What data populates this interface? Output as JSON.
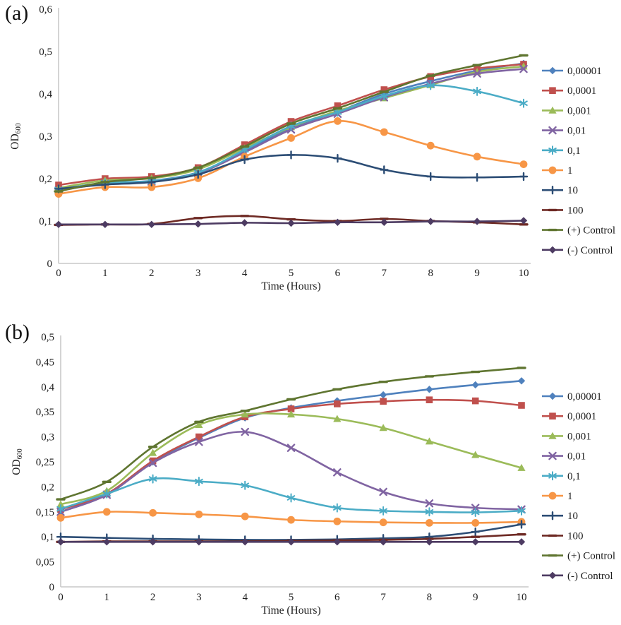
{
  "figure": {
    "panels": [
      {
        "label": "(a)"
      },
      {
        "label": "(b)"
      }
    ]
  },
  "chart_data": [
    {
      "panel": "(a)",
      "type": "line",
      "title": "",
      "xlabel": "Time (Hours)",
      "ylabel_main": "OD",
      "ylabel_sub": "600",
      "x": [
        0,
        1,
        2,
        3,
        4,
        5,
        6,
        7,
        8,
        9,
        10
      ],
      "xtick_labels": [
        "0",
        "1",
        "2",
        "3",
        "4",
        "5",
        "6",
        "7",
        "8",
        "9",
        "10"
      ],
      "xlim": [
        0,
        10
      ],
      "ylim": [
        0,
        0.6
      ],
      "yticks": [
        {
          "v": 0,
          "label": "0"
        },
        {
          "v": 0.1,
          "label": "0,1"
        },
        {
          "v": 0.2,
          "label": "0,2"
        },
        {
          "v": 0.3,
          "label": "0,3"
        },
        {
          "v": 0.4,
          "label": "0,4"
        },
        {
          "v": 0.5,
          "label": "0,5"
        },
        {
          "v": 0.6,
          "label": "0,6"
        }
      ],
      "grid": false,
      "legend_position": "right",
      "series": [
        {
          "name": "0,00001",
          "color": "#4F81BD",
          "marker": "diamond",
          "values": [
            0.175,
            0.19,
            0.195,
            0.215,
            0.265,
            0.32,
            0.358,
            0.4,
            0.43,
            0.455,
            0.472
          ]
        },
        {
          "name": "0,0001",
          "color": "#C0504D",
          "marker": "square",
          "values": [
            0.185,
            0.2,
            0.205,
            0.226,
            0.28,
            0.335,
            0.372,
            0.41,
            0.441,
            0.46,
            0.47
          ]
        },
        {
          "name": "0,001",
          "color": "#9BBB59",
          "marker": "triangle",
          "values": [
            0.178,
            0.196,
            0.201,
            0.222,
            0.272,
            0.322,
            0.36,
            0.39,
            0.421,
            0.452,
            0.465
          ]
        },
        {
          "name": "0,01",
          "color": "#8064A2",
          "marker": "x",
          "values": [
            0.172,
            0.188,
            0.193,
            0.213,
            0.262,
            0.316,
            0.353,
            0.392,
            0.424,
            0.448,
            0.459
          ]
        },
        {
          "name": "0,1",
          "color": "#4BACC6",
          "marker": "asterisk",
          "values": [
            0.174,
            0.19,
            0.194,
            0.214,
            0.268,
            0.324,
            0.357,
            0.395,
            0.42,
            0.406,
            0.378
          ]
        },
        {
          "name": "1",
          "color": "#F79646",
          "marker": "circle",
          "values": [
            0.164,
            0.18,
            0.18,
            0.201,
            0.252,
            0.296,
            0.336,
            0.31,
            0.278,
            0.252,
            0.234
          ]
        },
        {
          "name": "10",
          "color": "#2C4D75",
          "marker": "plus",
          "values": [
            0.176,
            0.186,
            0.192,
            0.21,
            0.245,
            0.256,
            0.248,
            0.221,
            0.205,
            0.203,
            0.205
          ]
        },
        {
          "name": "100",
          "color": "#6E2A24",
          "marker": "dash",
          "values": [
            0.091,
            0.092,
            0.093,
            0.107,
            0.112,
            0.104,
            0.1,
            0.105,
            0.1,
            0.097,
            0.092
          ]
        },
        {
          "name": "(+) Control",
          "color": "#5F7530",
          "marker": "dash",
          "values": [
            0.17,
            0.192,
            0.202,
            0.226,
            0.276,
            0.33,
            0.366,
            0.405,
            0.443,
            0.468,
            0.491
          ]
        },
        {
          "name": "(-) Control",
          "color": "#4D3B62",
          "marker": "diamond",
          "values": [
            0.092,
            0.092,
            0.092,
            0.093,
            0.096,
            0.095,
            0.097,
            0.097,
            0.099,
            0.099,
            0.101
          ]
        }
      ]
    },
    {
      "panel": "(b)",
      "type": "line",
      "title": "",
      "xlabel": "Time (Hours)",
      "ylabel_main": "OD",
      "ylabel_sub": "600",
      "x": [
        0,
        1,
        2,
        3,
        4,
        5,
        6,
        7,
        8,
        9,
        10
      ],
      "xtick_labels": [
        "0",
        "1",
        "2",
        "3",
        "4",
        "5",
        "6",
        "7",
        "8",
        "9",
        "10"
      ],
      "xlim": [
        0,
        10
      ],
      "ylim": [
        0,
        0.5
      ],
      "yticks": [
        {
          "v": 0,
          "label": "0"
        },
        {
          "v": 0.05,
          "label": "0,05"
        },
        {
          "v": 0.1,
          "label": "0,1"
        },
        {
          "v": 0.15,
          "label": "0,15"
        },
        {
          "v": 0.2,
          "label": "0,2"
        },
        {
          "v": 0.25,
          "label": "0,25"
        },
        {
          "v": 0.3,
          "label": "0,3"
        },
        {
          "v": 0.35,
          "label": "0,35"
        },
        {
          "v": 0.4,
          "label": "0,4"
        },
        {
          "v": 0.45,
          "label": "0,45"
        },
        {
          "v": 0.5,
          "label": "0,5"
        }
      ],
      "grid": false,
      "legend_position": "right",
      "series": [
        {
          "name": "0,00001",
          "color": "#4F81BD",
          "marker": "diamond",
          "values": [
            0.15,
            0.185,
            0.25,
            0.298,
            0.338,
            0.358,
            0.372,
            0.384,
            0.395,
            0.404,
            0.412
          ]
        },
        {
          "name": "0,0001",
          "color": "#C0504D",
          "marker": "square",
          "values": [
            0.155,
            0.186,
            0.252,
            0.3,
            0.34,
            0.356,
            0.366,
            0.371,
            0.374,
            0.372,
            0.363
          ]
        },
        {
          "name": "0,001",
          "color": "#9BBB59",
          "marker": "triangle",
          "values": [
            0.165,
            0.192,
            0.268,
            0.324,
            0.345,
            0.345,
            0.336,
            0.318,
            0.291,
            0.264,
            0.238
          ]
        },
        {
          "name": "0,01",
          "color": "#8064A2",
          "marker": "x",
          "values": [
            0.15,
            0.184,
            0.248,
            0.29,
            0.31,
            0.278,
            0.229,
            0.19,
            0.167,
            0.158,
            0.155
          ]
        },
        {
          "name": "0,1",
          "color": "#4BACC6",
          "marker": "asterisk",
          "values": [
            0.156,
            0.186,
            0.216,
            0.211,
            0.203,
            0.178,
            0.158,
            0.152,
            0.15,
            0.149,
            0.152
          ]
        },
        {
          "name": "1",
          "color": "#F79646",
          "marker": "circle",
          "values": [
            0.138,
            0.15,
            0.148,
            0.145,
            0.141,
            0.134,
            0.131,
            0.129,
            0.128,
            0.128,
            0.13
          ]
        },
        {
          "name": "10",
          "color": "#2C4D75",
          "marker": "plus",
          "values": [
            0.1,
            0.098,
            0.096,
            0.095,
            0.094,
            0.094,
            0.095,
            0.097,
            0.1,
            0.11,
            0.125
          ]
        },
        {
          "name": "100",
          "color": "#6E2A24",
          "marker": "dash",
          "values": [
            0.09,
            0.091,
            0.091,
            0.091,
            0.091,
            0.092,
            0.093,
            0.094,
            0.096,
            0.1,
            0.105
          ]
        },
        {
          "name": "(+) Control",
          "color": "#5F7530",
          "marker": "dash",
          "values": [
            0.175,
            0.21,
            0.28,
            0.33,
            0.352,
            0.375,
            0.395,
            0.41,
            0.421,
            0.43,
            0.438
          ]
        },
        {
          "name": "(-) Control",
          "color": "#4D3B62",
          "marker": "diamond",
          "values": [
            0.09,
            0.09,
            0.09,
            0.09,
            0.09,
            0.09,
            0.09,
            0.09,
            0.09,
            0.09,
            0.09
          ]
        }
      ]
    }
  ]
}
